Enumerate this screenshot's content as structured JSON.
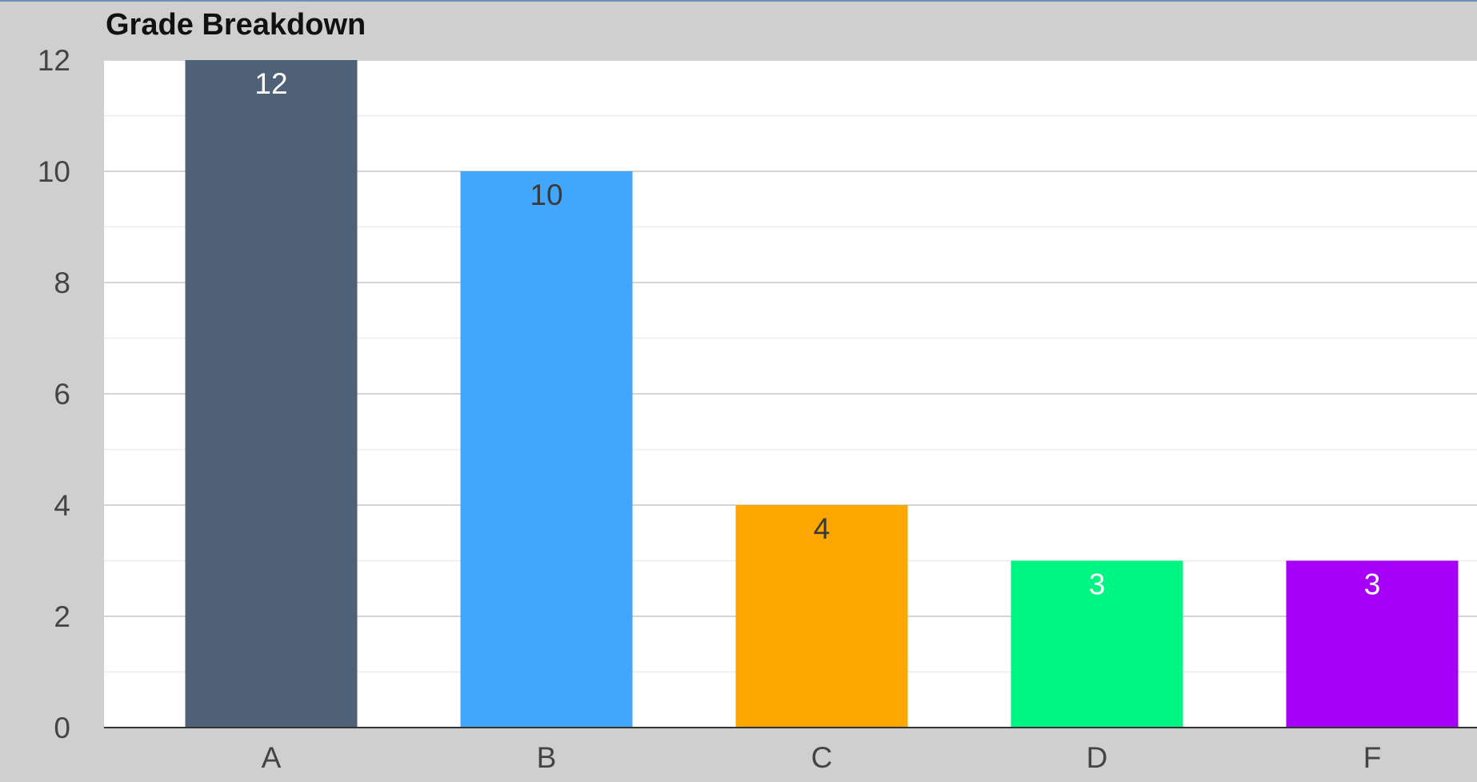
{
  "chart_data": {
    "type": "bar",
    "title": "Grade Breakdown",
    "xlabel": "",
    "ylabel": "",
    "categories": [
      "A",
      "B",
      "C",
      "D",
      "F"
    ],
    "values": [
      12,
      10,
      4,
      3,
      3
    ],
    "colors": [
      "#4f6176",
      "#42a7fb",
      "#fca600",
      "#00f585",
      "#a700f9"
    ],
    "data_label_colors": [
      "#ffffff",
      "#3a3a3a",
      "#3a3a3a",
      "#ffffff",
      "#ffffff"
    ],
    "ylim": [
      0,
      12
    ],
    "yticks": [
      "0",
      "2",
      "4",
      "6",
      "8",
      "10",
      "12"
    ],
    "grid": true,
    "legend": "none"
  }
}
